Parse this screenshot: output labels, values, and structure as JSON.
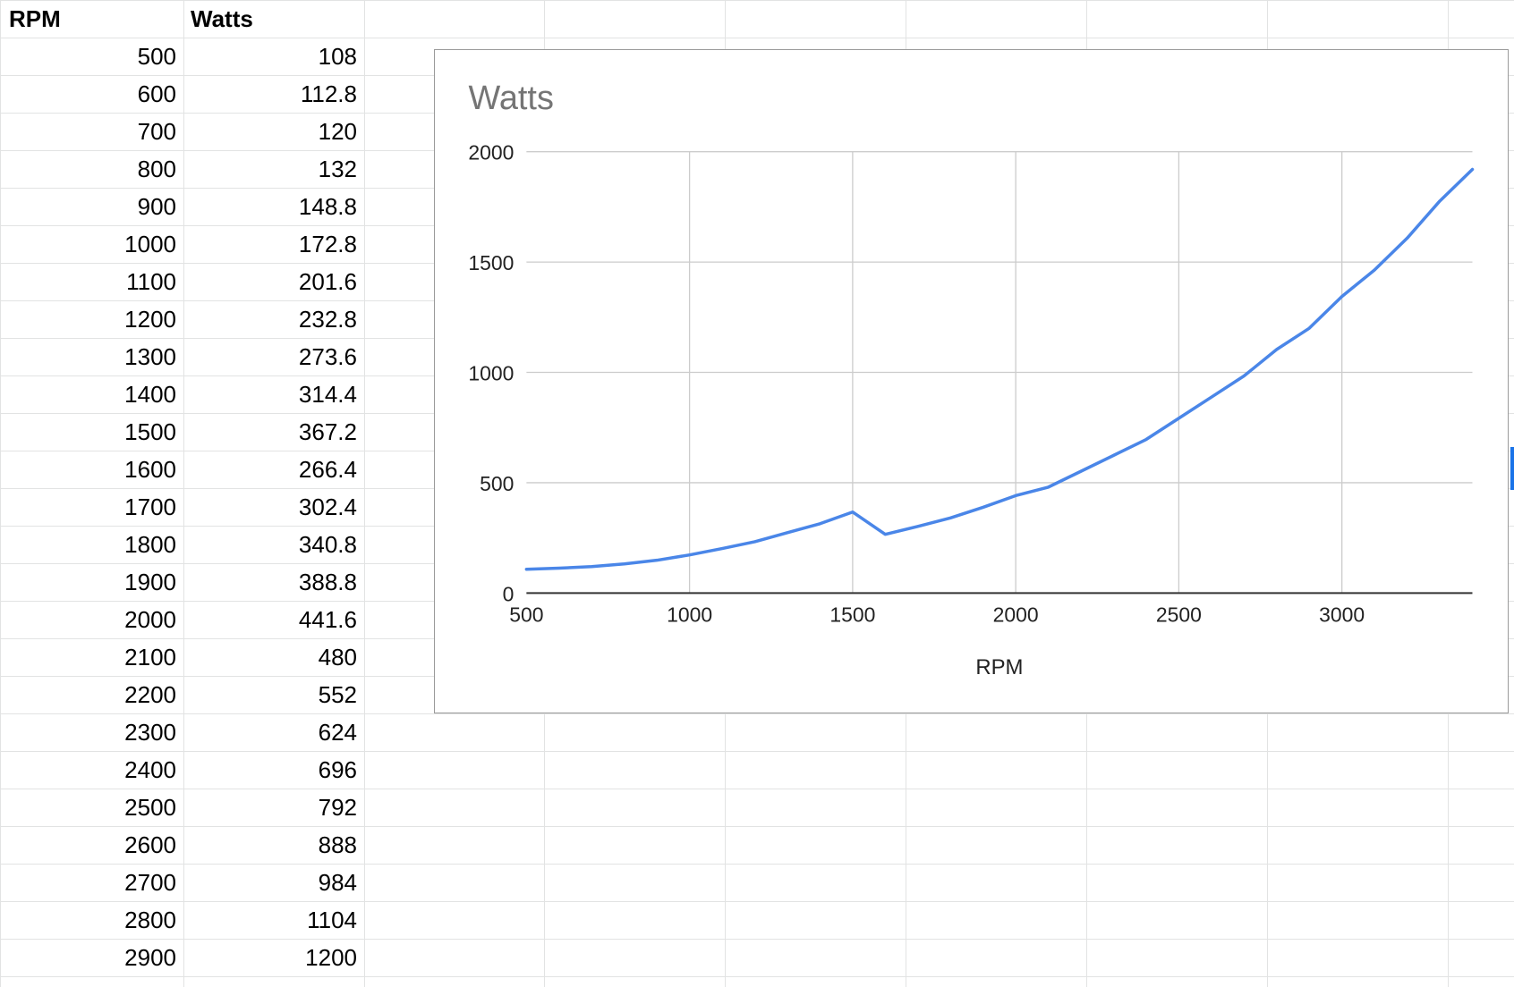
{
  "sheet": {
    "headers": {
      "rpm": "RPM",
      "watts": "Watts"
    },
    "rows": [
      {
        "rpm": "500",
        "watts": "108"
      },
      {
        "rpm": "600",
        "watts": "112.8"
      },
      {
        "rpm": "700",
        "watts": "120"
      },
      {
        "rpm": "800",
        "watts": "132"
      },
      {
        "rpm": "900",
        "watts": "148.8"
      },
      {
        "rpm": "1000",
        "watts": "172.8"
      },
      {
        "rpm": "1100",
        "watts": "201.6"
      },
      {
        "rpm": "1200",
        "watts": "232.8"
      },
      {
        "rpm": "1300",
        "watts": "273.6"
      },
      {
        "rpm": "1400",
        "watts": "314.4"
      },
      {
        "rpm": "1500",
        "watts": "367.2"
      },
      {
        "rpm": "1600",
        "watts": "266.4"
      },
      {
        "rpm": "1700",
        "watts": "302.4"
      },
      {
        "rpm": "1800",
        "watts": "340.8"
      },
      {
        "rpm": "1900",
        "watts": "388.8"
      },
      {
        "rpm": "2000",
        "watts": "441.6"
      },
      {
        "rpm": "2100",
        "watts": "480"
      },
      {
        "rpm": "2200",
        "watts": "552"
      },
      {
        "rpm": "2300",
        "watts": "624"
      },
      {
        "rpm": "2400",
        "watts": "696"
      },
      {
        "rpm": "2500",
        "watts": "792"
      },
      {
        "rpm": "2600",
        "watts": "888"
      },
      {
        "rpm": "2700",
        "watts": "984"
      },
      {
        "rpm": "2800",
        "watts": "1104"
      },
      {
        "rpm": "2900",
        "watts": "1200"
      }
    ]
  },
  "colors": {
    "series_line": "#4a86e8",
    "gridline": "#e2e3e3",
    "chart_title": "#757575",
    "selection": "#1a73e8"
  },
  "chart_data": {
    "type": "line",
    "title": "Watts",
    "xlabel": "RPM",
    "ylabel": "",
    "xlim": [
      500,
      3400
    ],
    "ylim": [
      0,
      2000
    ],
    "xticks": [
      "500",
      "1000",
      "1500",
      "2000",
      "2500",
      "3000"
    ],
    "yticks": [
      "0",
      "500",
      "1000",
      "1500",
      "2000"
    ],
    "grid": true,
    "legend": "none",
    "x": [
      500,
      600,
      700,
      800,
      900,
      1000,
      1100,
      1200,
      1300,
      1400,
      1500,
      1600,
      1700,
      1800,
      1900,
      2000,
      2100,
      2200,
      2300,
      2400,
      2500,
      2600,
      2700,
      2800,
      2900,
      3000,
      3100,
      3200,
      3300,
      3400
    ],
    "series": [
      {
        "values": [
          108,
          112.8,
          120,
          132,
          148.8,
          172.8,
          201.6,
          232.8,
          273.6,
          314.4,
          367.2,
          266.4,
          302.4,
          340.8,
          388.8,
          441.6,
          480,
          552,
          624,
          696,
          792,
          888,
          984,
          1104,
          1200,
          1344,
          1464,
          1608,
          1776,
          1920
        ]
      }
    ]
  }
}
